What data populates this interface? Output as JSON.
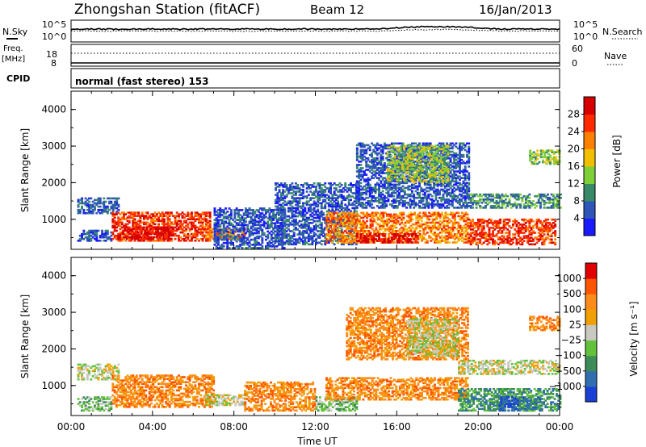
{
  "header": {
    "station": "Zhongshan Station (fitACF)",
    "beam": "Beam 12",
    "date": "16/Jan/2013"
  },
  "noise_panel": {
    "left_label": "N.Sky",
    "right_label": "N.Search",
    "ticks": [
      "10^5",
      "10^0"
    ]
  },
  "freq_panel": {
    "left_label_1": "Freq.",
    "left_label_2": "[MHz]",
    "left_ticks": [
      "18",
      "8"
    ],
    "right_label": "Nave",
    "right_ticks": [
      "60",
      "0"
    ]
  },
  "cpid": {
    "label": "CPID",
    "value": "normal (fast stereo) 153"
  },
  "chart_data": [
    {
      "type": "heatmap",
      "title": "",
      "xlabel": "Time UT",
      "ylabel": "Slant Range [km]",
      "x_ticks": [
        "00:00",
        "04:00",
        "08:00",
        "12:00",
        "16:00",
        "20:00",
        "00:00"
      ],
      "y_ticks": [
        "1000",
        "2000",
        "3000",
        "4000"
      ],
      "ylim": [
        180,
        4500
      ],
      "colorbar": {
        "label": "Power [dB]",
        "ticks": [
          "4",
          "8",
          "12",
          "16",
          "20",
          "24",
          "28"
        ],
        "colors": [
          "#1a1aff",
          "#2f55b8",
          "#3a8a6a",
          "#7fcf3a",
          "#f0c000",
          "#ff8000",
          "#ff2a00",
          "#d60000"
        ]
      },
      "regions": [
        {
          "t0": 0.3,
          "t1": 2.3,
          "r0": 1150,
          "r1": 1600,
          "level": 1
        },
        {
          "t0": 0.3,
          "t1": 2.0,
          "r0": 400,
          "r1": 700,
          "level": 1
        },
        {
          "t0": 2.0,
          "t1": 6.8,
          "r0": 400,
          "r1": 1200,
          "level": 6
        },
        {
          "t0": 2.5,
          "t1": 5.0,
          "r0": 450,
          "r1": 800,
          "level": 7
        },
        {
          "t0": 6.5,
          "t1": 8.5,
          "r0": 450,
          "r1": 750,
          "level": 5
        },
        {
          "t0": 7.0,
          "t1": 10.5,
          "r0": 200,
          "r1": 1300,
          "level": 1
        },
        {
          "t0": 10.0,
          "t1": 14.0,
          "r0": 300,
          "r1": 2000,
          "level": 1
        },
        {
          "t0": 12.5,
          "t1": 19.5,
          "r0": 350,
          "r1": 1200,
          "level": 5
        },
        {
          "t0": 14.0,
          "t1": 17.0,
          "r0": 350,
          "r1": 600,
          "level": 7
        },
        {
          "t0": 14.0,
          "t1": 19.5,
          "r0": 1300,
          "r1": 3100,
          "level": 1
        },
        {
          "t0": 15.5,
          "t1": 18.5,
          "r0": 2000,
          "r1": 3000,
          "level": 3
        },
        {
          "t0": 19.5,
          "t1": 23.8,
          "r0": 300,
          "r1": 1000,
          "level": 6
        },
        {
          "t0": 19.5,
          "t1": 24.0,
          "r0": 1300,
          "r1": 1700,
          "level": 2
        },
        {
          "t0": 22.5,
          "t1": 24.0,
          "r0": 2500,
          "r1": 2900,
          "level": 3
        }
      ]
    },
    {
      "type": "heatmap",
      "title": "",
      "xlabel": "Time UT",
      "ylabel": "Slant Range [km]",
      "x_ticks": [
        "00:00",
        "04:00",
        "08:00",
        "12:00",
        "16:00",
        "20:00",
        "00:00"
      ],
      "y_ticks": [
        "1000",
        "2000",
        "3000",
        "4000"
      ],
      "ylim": [
        180,
        4500
      ],
      "colorbar": {
        "label": "Velocity [m s⁻¹]",
        "ticks": [
          "1000",
          "500",
          "100",
          "25",
          "−25",
          "−100",
          "−500",
          "−1000"
        ],
        "colors": [
          "#1a3fd6",
          "#2f6fb0",
          "#3c8c5a",
          "#62c23a",
          "#c8c8c0",
          "#f0a000",
          "#ff8c1a",
          "#ff5500",
          "#e00000"
        ]
      },
      "regions": [
        {
          "t0": 0.3,
          "t1": 2.3,
          "r0": 1150,
          "r1": 1600,
          "level": 4
        },
        {
          "t0": 0.3,
          "t1": 2.0,
          "r0": 300,
          "r1": 700,
          "level": 3
        },
        {
          "t0": 2.0,
          "t1": 7.0,
          "r0": 400,
          "r1": 1300,
          "level": 6
        },
        {
          "t0": 6.5,
          "t1": 8.5,
          "r0": 450,
          "r1": 750,
          "level": 4
        },
        {
          "t0": 8.5,
          "t1": 12.0,
          "r0": 300,
          "r1": 1100,
          "level": 6
        },
        {
          "t0": 12.0,
          "t1": 14.0,
          "r0": 300,
          "r1": 700,
          "level": 3
        },
        {
          "t0": 12.5,
          "t1": 19.5,
          "r0": 600,
          "r1": 1200,
          "level": 6
        },
        {
          "t0": 13.5,
          "t1": 19.5,
          "r0": 1700,
          "r1": 3100,
          "level": 6
        },
        {
          "t0": 16.5,
          "t1": 19.0,
          "r0": 1800,
          "r1": 2800,
          "level": 4
        },
        {
          "t0": 19.0,
          "t1": 24.0,
          "r0": 1300,
          "r1": 1700,
          "level": 4
        },
        {
          "t0": 19.0,
          "t1": 22.0,
          "r0": 300,
          "r1": 900,
          "level": 2
        },
        {
          "t0": 21.0,
          "t1": 23.0,
          "r0": 300,
          "r1": 700,
          "level": 0
        },
        {
          "t0": 22.0,
          "t1": 24.0,
          "r0": 300,
          "r1": 900,
          "level": 2
        },
        {
          "t0": 22.5,
          "t1": 24.0,
          "r0": 2500,
          "r1": 2900,
          "level": 6
        }
      ]
    }
  ]
}
